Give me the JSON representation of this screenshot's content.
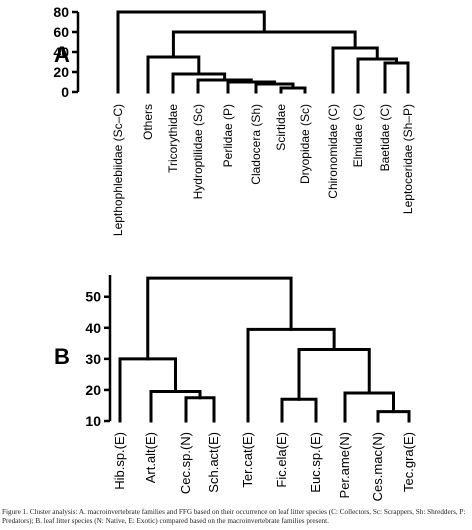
{
  "figure": {
    "caption": "Figure 1. Cluster analysis: A. macroinvertebrate families and FFG based on their occurrence on leaf litter species (C: Collectors, Sc: Scrappers, Sh: Shredders, P: Predators); B. leaf litter species (N: Native, E: Exotic) compared based on the macroinvertebrate families present."
  },
  "chart_data": [
    {
      "type": "dendrogram",
      "panel": "A",
      "ylim": [
        0,
        80
      ],
      "yticks": [
        0,
        20,
        40,
        60,
        80
      ],
      "leaves": [
        "Lepthophlebiidae (Sc–C)",
        "Others",
        "Tricorythidae",
        "Hydroptilidae (Sc)",
        "Perlidae (P)",
        "Cladocera (Sh)",
        "Scirtidae",
        "Dryopidae (Sc)",
        "Chironomidae (C)",
        "Elmidae (C)",
        "Baetidae (C)",
        "Leptoceridae (Sh–P)"
      ],
      "merges": [
        {
          "a": 6,
          "b": 7,
          "height": 4
        },
        {
          "a": 5,
          "b": 12,
          "height": 8
        },
        {
          "a": 4,
          "b": 13,
          "height": 10
        },
        {
          "a": 3,
          "b": 14,
          "height": 12
        },
        {
          "a": 2,
          "b": 15,
          "height": 18
        },
        {
          "a": 10,
          "b": 11,
          "height": 29
        },
        {
          "a": 9,
          "b": 17,
          "height": 33
        },
        {
          "a": 1,
          "b": 16,
          "height": 35
        },
        {
          "a": 8,
          "b": 18,
          "height": 44
        },
        {
          "a": 19,
          "b": 20,
          "height": 60
        },
        {
          "a": 0,
          "b": 21,
          "height": 80
        }
      ]
    },
    {
      "type": "dendrogram",
      "panel": "B",
      "ylim": [
        10,
        57
      ],
      "yticks": [
        10,
        20,
        30,
        40,
        50
      ],
      "leaves": [
        "Hib.sp.(E)",
        "Art.alt(E)",
        "Cec.sp.(N)",
        "Sch.act(E)",
        "Ter.cat(E)",
        "Fic.ela(E)",
        "Euc.sp.(E)",
        "Per.ame(N)",
        "Ces.mac(N)",
        "Tec.gra(E)"
      ],
      "merges": [
        {
          "a": 8,
          "b": 9,
          "height": 13
        },
        {
          "a": 5,
          "b": 6,
          "height": 17
        },
        {
          "a": 2,
          "b": 3,
          "height": 17.5
        },
        {
          "a": 7,
          "b": 10,
          "height": 19
        },
        {
          "a": 1,
          "b": 12,
          "height": 19.5
        },
        {
          "a": 0,
          "b": 14,
          "height": 30
        },
        {
          "a": 11,
          "b": 13,
          "height": 33
        },
        {
          "a": 4,
          "b": 16,
          "height": 39.5
        },
        {
          "a": 15,
          "b": 17,
          "height": 56
        }
      ]
    }
  ]
}
